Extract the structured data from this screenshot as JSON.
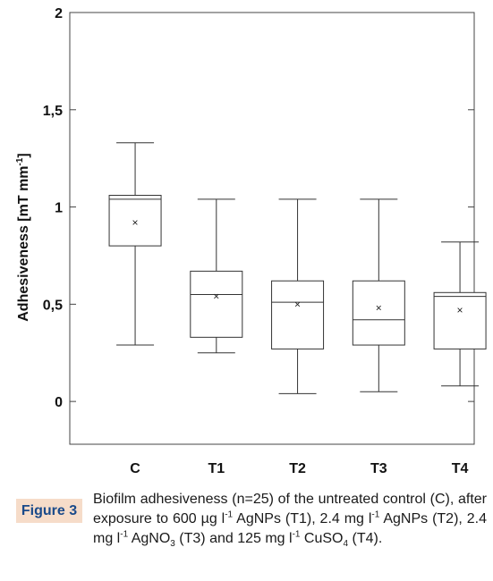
{
  "chart_data": {
    "type": "box",
    "ylabel": "Adhesiveness [mT mm-1]",
    "ylabel_parts": {
      "base": "Adhesiveness [mT mm",
      "sup": "-1",
      "end": "]"
    },
    "ylim": [
      -0.22,
      2.0
    ],
    "yticks": [
      {
        "value": 0,
        "label": "0"
      },
      {
        "value": 0.5,
        "label": "0,5"
      },
      {
        "value": 1,
        "label": "1"
      },
      {
        "value": 1.5,
        "label": "1,5"
      },
      {
        "value": 2,
        "label": "2"
      }
    ],
    "categories": [
      "C",
      "T1",
      "T2",
      "T3",
      "T4"
    ],
    "boxes": [
      {
        "category": "C",
        "min": 0.29,
        "q1": 0.8,
        "median": 1.04,
        "q3": 1.06,
        "max": 1.33,
        "mean": 0.92
      },
      {
        "category": "T1",
        "min": 0.25,
        "q1": 0.33,
        "median": 0.55,
        "q3": 0.67,
        "max": 1.04,
        "mean": 0.54
      },
      {
        "category": "T2",
        "min": 0.04,
        "q1": 0.27,
        "median": 0.51,
        "q3": 0.62,
        "max": 1.04,
        "mean": 0.5
      },
      {
        "category": "T3",
        "min": 0.05,
        "q1": 0.29,
        "median": 0.42,
        "q3": 0.62,
        "max": 1.04,
        "mean": 0.48
      },
      {
        "category": "T4",
        "min": 0.08,
        "q1": 0.27,
        "median": 0.54,
        "q3": 0.56,
        "max": 0.82,
        "mean": 0.47
      }
    ],
    "mean_marker": "×",
    "grid": false
  },
  "caption": {
    "label": "Figure 3",
    "parts": [
      {
        "t": "Biofilm adhesiveness (n=25) of the untreated control (C), after exposure to 600 µg l"
      },
      {
        "sup": "-1"
      },
      {
        "t": " AgNPs (T1), 2.4 mg l"
      },
      {
        "sup": "-1"
      },
      {
        "t": " AgNPs (T2), 2.4 mg l"
      },
      {
        "sup": "-1"
      },
      {
        "t": " AgNO"
      },
      {
        "sub": "3"
      },
      {
        "t": " (T3) and 125 mg l"
      },
      {
        "sup": "-1"
      },
      {
        "t": " CuSO"
      },
      {
        "sub": "4"
      },
      {
        "t": " (T4)."
      }
    ]
  }
}
